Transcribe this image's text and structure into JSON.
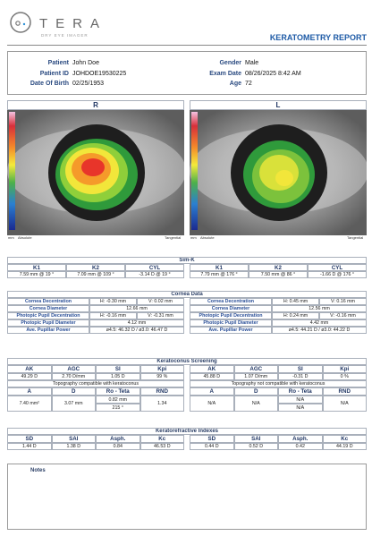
{
  "header": {
    "brand": "TERA",
    "tagline": "DRY EYE IMAGER",
    "title": "KERATOMETRY REPORT"
  },
  "patient": {
    "left": [
      {
        "label": "Patient",
        "value": "John Doe"
      },
      {
        "label": "Patient ID",
        "value": "JOHDOE19530225"
      },
      {
        "label": "Date Of Birth",
        "value": "02/25/1953"
      }
    ],
    "right": [
      {
        "label": "Gender",
        "value": "Male"
      },
      {
        "label": "Exam Date",
        "value": "08/26/2025 8:42 AM"
      },
      {
        "label": "Age",
        "value": "72"
      }
    ]
  },
  "eyes": [
    {
      "title": "R",
      "unit": "mm",
      "left_label": "Absolute",
      "right_label": "Tangential"
    },
    {
      "title": "L",
      "unit": "mm",
      "left_label": "Absolute",
      "right_label": "Tangential"
    }
  ],
  "simk": {
    "title": "Sim-K",
    "columns": [
      "K1",
      "K2",
      "CYL"
    ],
    "values": [
      [
        "7.59 mm @ 19 °",
        "7.09 mm @ 109 °",
        "-3.14 D @ 19 °"
      ],
      [
        "7.79 mm @ 176 °",
        "7.50 mm @ 86 °",
        "-1.66 D @ 176 °"
      ]
    ]
  },
  "cornea": {
    "title": "Cornea Data",
    "rows": [
      {
        "label": "Cornea Decentration",
        "values": [
          [
            "H: -0.30 mm",
            "V: 0.02 mm"
          ],
          [
            "H: 0.45 mm",
            "V: 0.16 mm"
          ]
        ]
      },
      {
        "label": "Cornea Diameter",
        "values": [
          [
            "12.66 mm"
          ],
          [
            "12.56 mm"
          ]
        ]
      },
      {
        "label": "Photopic Pupil Decentration",
        "values": [
          [
            "H: -0.16 mm",
            "V: -0.31 mm"
          ],
          [
            "H: 0.24 mm",
            "V: -0.16 mm"
          ]
        ]
      },
      {
        "label": "Photopic Pupil Diameter",
        "values": [
          [
            "4.12 mm"
          ],
          [
            "4.42 mm"
          ]
        ]
      },
      {
        "label": "Ave. Pupillar Power",
        "values": [
          [
            "ø4.5: 46.32 D / ø3.0: 46.47 D"
          ],
          [
            "ø4.5: 44.21 D / ø3.0: 44.22 D"
          ]
        ]
      }
    ]
  },
  "keratoconus": {
    "title": "Keratoconus Screening",
    "columns1": [
      "AK",
      "AGC",
      "SI",
      "Kpi"
    ],
    "values1": [
      [
        "49.29 D",
        "2.70 D/mm",
        "1.05 D",
        "99 %"
      ],
      [
        "45.88 D",
        "1.07 D/mm",
        "-0.31 D",
        "0 %"
      ]
    ],
    "verdicts": [
      "Topography compatible with keratoconus",
      "Topography not compatible with keratoconus"
    ],
    "columns2": [
      "A",
      "D",
      "Ro - Teta",
      "RND"
    ],
    "values2": [
      [
        "7.40 mm²",
        "3.07 mm",
        [
          "0.82 mm",
          "215 °"
        ],
        "1.34"
      ],
      [
        "N/A",
        "N/A",
        [
          "N/A",
          "N/A"
        ],
        "N/A"
      ]
    ]
  },
  "kri": {
    "title": "Keratorefractive Indexes",
    "columns": [
      "SD",
      "SAI",
      "Asph.",
      "Kc"
    ],
    "values": [
      [
        "1.44 D",
        "1.38 D",
        "0.84",
        "46.53 D"
      ],
      [
        "0.44 D",
        "0.52 D",
        "0.42",
        "44.19 D"
      ]
    ]
  },
  "notes": {
    "title": "Notes"
  }
}
